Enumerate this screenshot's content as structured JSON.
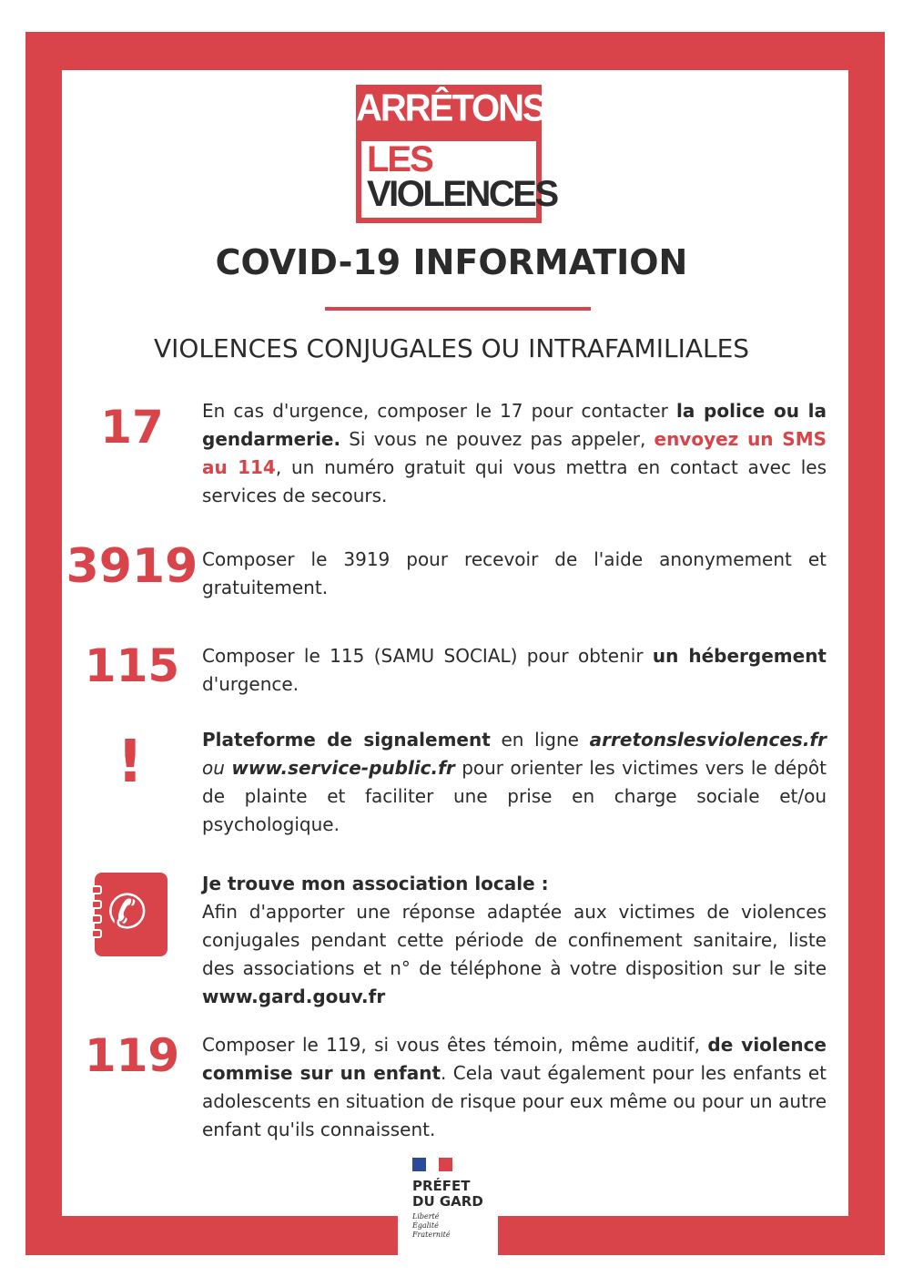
{
  "logo": {
    "line1": "ARRÊTONS",
    "line2": "LES",
    "line3": "VIOLENCES"
  },
  "title": "COVID-19 INFORMATION",
  "subtitle": "VIOLENCES CONJUGALES OU INTRAFAMILIALES",
  "colors": {
    "accent": "#d9434a",
    "text": "#2b2b2b"
  },
  "sections": [
    {
      "number": "17",
      "text": [
        {
          "t": "En cas d'urgence, composer le 17 pour contacter "
        },
        {
          "t": "la police ou la gendarmerie.",
          "s": "b"
        },
        {
          "t": " Si vous ne pouvez pas appeler, "
        },
        {
          "t": "envoyez un SMS au 114",
          "s": "r"
        },
        {
          "t": ", un numéro gratuit qui vous mettra en contact avec les services de secours."
        }
      ]
    },
    {
      "number": "3919",
      "text": [
        {
          "t": "Composer le 3919 pour recevoir de l'aide anonymement et gratuitement."
        }
      ]
    },
    {
      "number": "115",
      "text": [
        {
          "t": "Composer le 115 (SAMU SOCIAL) pour obtenir "
        },
        {
          "t": "un hébergement",
          "s": "b"
        },
        {
          "t": " d'urgence."
        }
      ]
    },
    {
      "number": "!",
      "text": [
        {
          "t": "Plateforme de signalement",
          "s": "b"
        },
        {
          "t": " en ligne "
        },
        {
          "t": "arretonslesviolences.fr",
          "s": "bi"
        },
        {
          "t": " ou ",
          "s": "i"
        },
        {
          "t": "www.service-public.fr",
          "s": "bi"
        },
        {
          "t": " pour orienter les victimes vers le dépôt de plainte et faciliter une prise en charge sociale et/ou psychologique."
        }
      ]
    },
    {
      "icon": "phone-book-icon",
      "text": [
        {
          "t": "Je trouve mon association locale :",
          "s": "b"
        },
        {
          "t": "\nAfin d'apporter une réponse adaptée aux victimes de violences conjugales pendant cette période de confinement sanitaire, liste des associations et n° de téléphone à votre disposition sur le site "
        },
        {
          "t": "www.gard.gouv.fr",
          "s": "b"
        }
      ]
    },
    {
      "number": "119",
      "text": [
        {
          "t": "Composer le 119, si vous êtes témoin, même auditif, "
        },
        {
          "t": "de violence commise sur un enfant",
          "s": "b"
        },
        {
          "t": ". Cela vaut également pour les enfants et adolescents en situation de risque pour eux même ou pour un autre enfant qu'ils connaissent."
        }
      ]
    }
  ],
  "footer": {
    "line1": "PRÉFET",
    "line2": "DU GARD",
    "motto": [
      "Liberté",
      "Égalité",
      "Fraternité"
    ],
    "flag_colors": [
      "#2c4a9a",
      "#ffffff",
      "#d9434a"
    ]
  }
}
